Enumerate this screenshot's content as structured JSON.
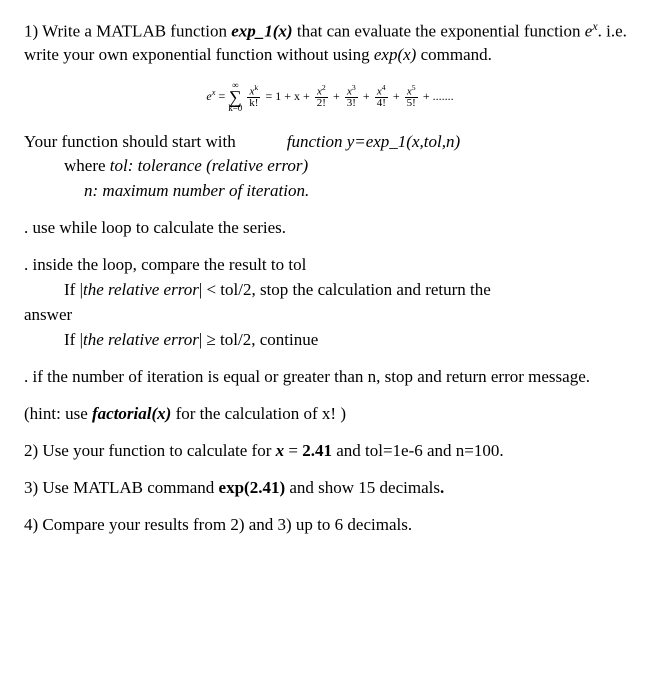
{
  "q1": {
    "lead": "1)  Write a MATLAB function ",
    "fn": "exp_1(x)",
    "after_fn": " that can evaluate the exponential function ",
    "ex": "e",
    "ex_sup": "x",
    "after_ex": ". i.e. write your own exponential function without using ",
    "expx": "exp(x)",
    "after_expx": " command."
  },
  "formula": {
    "lhs_base": "e",
    "lhs_sup": "x",
    "eq": " = ",
    "sig_top": "∞",
    "sig_bot": "k=0",
    "f0_num": "x",
    "f0_num_sup": "k",
    "f0_den": "k!",
    "mid": " = 1 + x + ",
    "f2_num": "x",
    "f2_sup": "2",
    "f2_den": "2!",
    "f3_num": "x",
    "f3_sup": "3",
    "f3_den": "3!",
    "f4_num": "x",
    "f4_sup": "4",
    "f4_den": "4!",
    "f5_num": "x",
    "f5_sup": "5",
    "f5_den": "5!",
    "plus": " + ",
    "dots": " + ......."
  },
  "start": {
    "a": "Your function should start with",
    "sig": "function y=exp_1(x,tol,n)",
    "where": "where",
    "tol": "   tol: tolerance (relative error)",
    "n": "n:   maximum number of iteration."
  },
  "b1": ". use while loop to calculate the series.",
  "b2": {
    "l1": ". inside the loop, compare the result to tol",
    "l2a": "If |",
    "l2b": "the relative error",
    "l2c": "| < tol/2, stop the calculation and return the",
    "l3": "answer",
    "l4a": "If |",
    "l4b": "the relative error",
    "l4c": "| ≥ tol/2, continue"
  },
  "b3": ". if the number of iteration is equal or greater than n, stop and return error message.",
  "hint": {
    "a": "(hint: use ",
    "b": "factorial(x)",
    "c": " for the calculation of  x! )"
  },
  "q2": {
    "a": "2) Use your function to calculate for ",
    "xlab": "x",
    "xval": " = ",
    "xnum": "2.41",
    "b": " and tol=1e-6 and n=100."
  },
  "q3": {
    "a": "3) Use MATLAB command ",
    "cmd": "exp(2.41)",
    "b": " and show 15 decimals",
    "dot": "."
  },
  "q4": "4) Compare your results from 2) and 3) up to 6 decimals."
}
